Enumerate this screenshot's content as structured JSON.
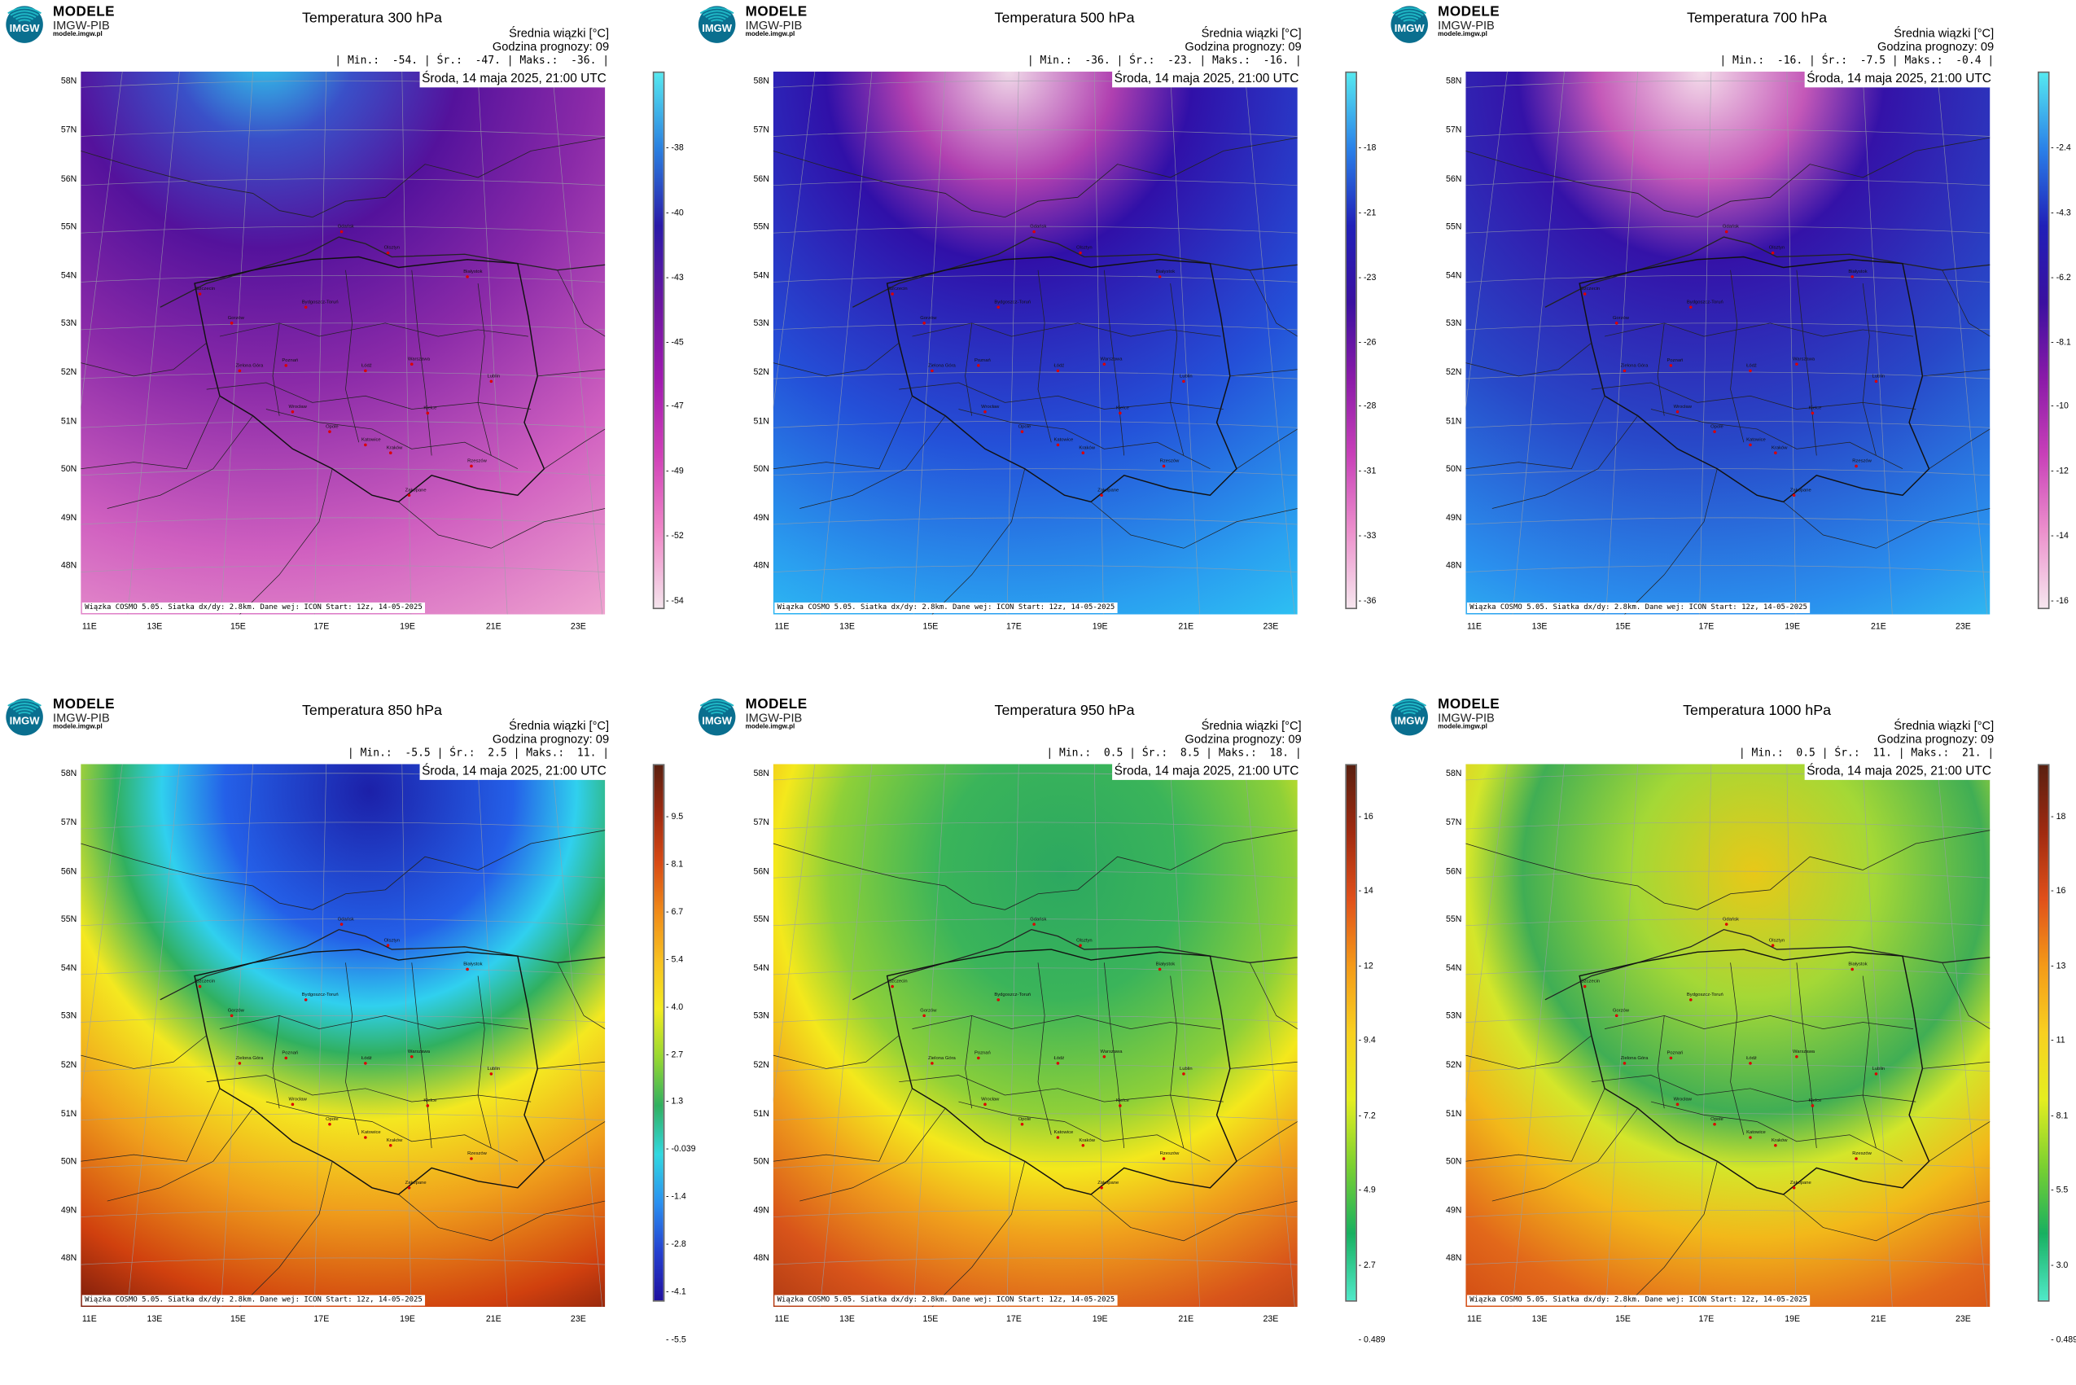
{
  "brand": {
    "line1": "MODELE",
    "line2": "IMGW-PIB",
    "line3": "modele.imgw.pl",
    "logo_text": "IMGW",
    "logo_colors": [
      "#1fb6c4",
      "#0a6f8f"
    ]
  },
  "common": {
    "info_line1": "Średnia wiązki [°C]",
    "info_line2": "Godzina prognozy: 09",
    "date": "Środa, 14 maja 2025, 21:00 UTC",
    "footer": "Wiązka COSMO 5.05. Siatka dx/dy: 2.8km. Dane wej: ICON Start: 12z, 14-05-2025",
    "lat_labels": [
      "58N",
      "57N",
      "56N",
      "55N",
      "54N",
      "53N",
      "52N",
      "51N",
      "50N",
      "49N",
      "48N"
    ],
    "lon_labels": [
      "11E",
      "13E",
      "15E",
      "17E",
      "19E",
      "21E",
      "23E"
    ],
    "cities": [
      "Gdańsk",
      "Olsztyn",
      "Białystok",
      "Szczecin",
      "Bydgoszcz-Toruń",
      "Gorzów",
      "Poznań",
      "Warszawa",
      "Zielona Góra",
      "Łódź",
      "Lublin",
      "Wrocław",
      "Kielce",
      "Opole",
      "Katowice",
      "Kraków",
      "Rzeszów",
      "Zakopane"
    ]
  },
  "panels": [
    {
      "title": "Temperatura 300 hPa",
      "min": "-54.",
      "mean": "-47.",
      "max": "-36.",
      "colorbar": {
        "ticks": [
          "-38",
          "-40",
          "-43",
          "-45",
          "-47",
          "-49",
          "-52",
          "-54"
        ],
        "colors": [
          "#55e8f0",
          "#2a7fe0",
          "#2a1aa8",
          "#6a16a0",
          "#a01ab0",
          "#d040b8",
          "#f088c8",
          "#f4e4ec"
        ]
      },
      "field_colors": [
        "#30d8f0",
        "#3a50c8",
        "#54129c",
        "#8a2aa8",
        "#d060c0",
        "#f0a6d0"
      ]
    },
    {
      "title": "Temperatura 500 hPa",
      "min": "-36.",
      "mean": "-23.",
      "max": "-16.",
      "colorbar": {
        "ticks": [
          "-18",
          "-21",
          "-23",
          "-26",
          "-28",
          "-31",
          "-33",
          "-36"
        ],
        "colors": [
          "#55e8f0",
          "#2a80e8",
          "#2020b8",
          "#3a10a0",
          "#8a1aa8",
          "#c840b8",
          "#ec90cc",
          "#f6e6ee"
        ]
      },
      "field_colors": [
        "#f0d8e8",
        "#b040b0",
        "#3010a8",
        "#2450d8",
        "#2aa0f0",
        "#30d8f4"
      ]
    },
    {
      "title": "Temperatura 700 hPa",
      "min": "-16.",
      "mean": "-7.5",
      "max": "-0.4",
      "colorbar": {
        "ticks": [
          "-2.4",
          "-4.3",
          "-6.2",
          "-8.1",
          "-10",
          "-12",
          "-14",
          "-16"
        ],
        "colors": [
          "#55e8f0",
          "#2a80e8",
          "#2020b8",
          "#3a10a0",
          "#8a1aa8",
          "#c840b8",
          "#ec90cc",
          "#f6e6ee"
        ]
      },
      "field_colors": [
        "#f4dcea",
        "#c458b8",
        "#3412a8",
        "#2848c8",
        "#2a90ee",
        "#34d4f2"
      ]
    },
    {
      "title": "Temperatura 850 hPa",
      "min": "-5.5",
      "mean": "2.5",
      "max": "11.",
      "colorbar": {
        "ticks": [
          "9.5",
          "8.1",
          "6.7",
          "5.4",
          "4.0",
          "2.7",
          "1.3",
          "-0.039",
          "-1.4",
          "-2.8",
          "-4.1",
          "-5.5"
        ],
        "colors": [
          "#5a2010",
          "#a02a10",
          "#d84a14",
          "#f08a18",
          "#f8c020",
          "#f4ec20",
          "#98d830",
          "#30b060",
          "#30d8e0",
          "#2a90f0",
          "#2440d0",
          "#2010a0"
        ]
      },
      "field_colors": [
        "#1c20a8",
        "#2460e8",
        "#30d0ee",
        "#30b060",
        "#f4e820",
        "#f0a01c",
        "#d0400e",
        "#7a1c0c"
      ]
    },
    {
      "title": "Temperatura 950 hPa",
      "min": "0.5",
      "mean": "8.5",
      "max": "18.",
      "colorbar": {
        "ticks": [
          "16",
          "14",
          "12",
          "9.4",
          "7.2",
          "4.9",
          "2.7",
          "0.489"
        ],
        "colors": [
          "#5a2010",
          "#a02a10",
          "#e0501a",
          "#f49a18",
          "#f8d020",
          "#e4ee20",
          "#7ad030",
          "#18b060",
          "#50e8c8"
        ]
      },
      "field_colors": [
        "#2ca860",
        "#3ab45a",
        "#8ed038",
        "#f4e81c",
        "#f0a01c",
        "#d8541a",
        "#9a2c10"
      ]
    },
    {
      "title": "Temperatura 1000 hPa",
      "min": "0.5",
      "mean": "11.",
      "max": "21.",
      "colorbar": {
        "ticks": [
          "18",
          "16",
          "13",
          "11",
          "8.1",
          "5.5",
          "3.0",
          "0.489"
        ],
        "colors": [
          "#5a2010",
          "#a02a10",
          "#e0501a",
          "#f49a18",
          "#f8d020",
          "#e4ee20",
          "#7ad030",
          "#18b060",
          "#50e8c8"
        ]
      },
      "field_colors": [
        "#e8c818",
        "#a4d836",
        "#40ae54",
        "#d4e62a",
        "#f2b81a",
        "#e2681a",
        "#c83c12"
      ]
    }
  ]
}
